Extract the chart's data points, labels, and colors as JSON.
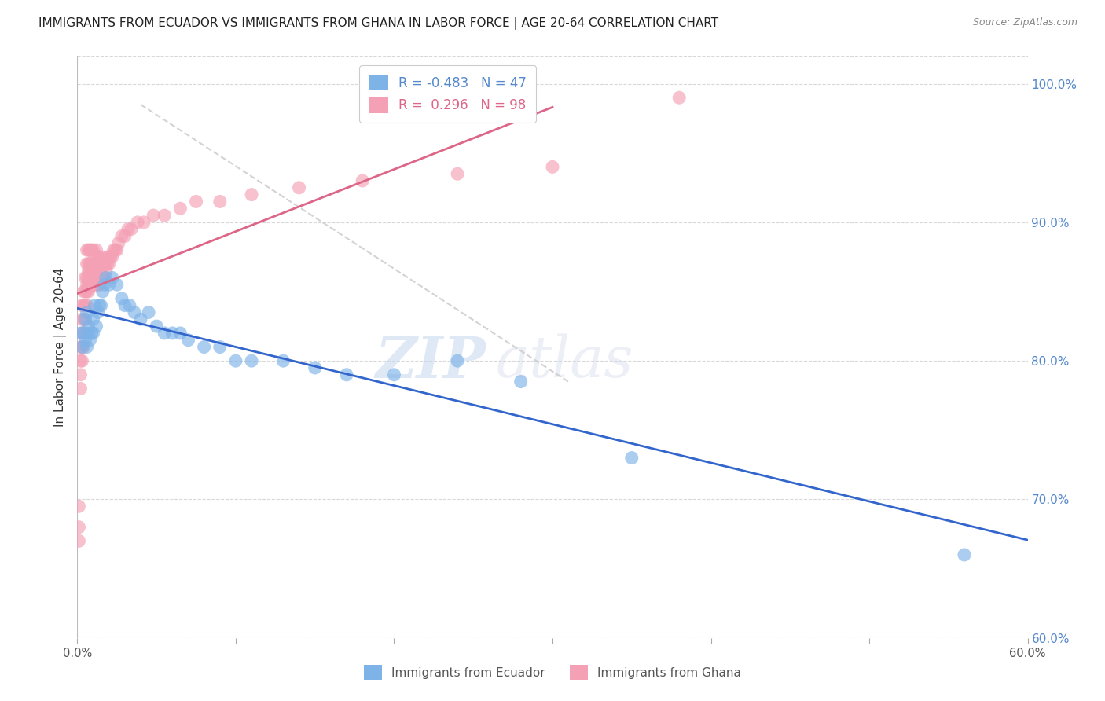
{
  "title": "IMMIGRANTS FROM ECUADOR VS IMMIGRANTS FROM GHANA IN LABOR FORCE | AGE 20-64 CORRELATION CHART",
  "source": "Source: ZipAtlas.com",
  "ylabel": "In Labor Force | Age 20-64",
  "xlim": [
    0.0,
    0.6
  ],
  "ylim": [
    0.6,
    1.02
  ],
  "xticks": [
    0.0,
    0.1,
    0.2,
    0.3,
    0.4,
    0.5,
    0.6
  ],
  "yticks_right": [
    0.6,
    0.7,
    0.8,
    0.9,
    1.0
  ],
  "ytick_labels_right": [
    "60.0%",
    "70.0%",
    "80.0%",
    "90.0%",
    "100.0%"
  ],
  "color_ecuador": "#7EB3E8",
  "color_ghana": "#F4A0B5",
  "R_ecuador": -0.483,
  "N_ecuador": 47,
  "R_ghana": 0.296,
  "N_ghana": 98,
  "ecuador_x": [
    0.002,
    0.003,
    0.004,
    0.005,
    0.005,
    0.006,
    0.006,
    0.007,
    0.007,
    0.008,
    0.009,
    0.01,
    0.01,
    0.011,
    0.012,
    0.013,
    0.014,
    0.015,
    0.016,
    0.017,
    0.018,
    0.02,
    0.022,
    0.025,
    0.028,
    0.03,
    0.033,
    0.036,
    0.04,
    0.045,
    0.05,
    0.055,
    0.06,
    0.065,
    0.07,
    0.08,
    0.09,
    0.1,
    0.11,
    0.13,
    0.15,
    0.17,
    0.2,
    0.24,
    0.28,
    0.56,
    0.35
  ],
  "ecuador_y": [
    0.82,
    0.81,
    0.82,
    0.83,
    0.815,
    0.835,
    0.81,
    0.82,
    0.825,
    0.815,
    0.82,
    0.82,
    0.83,
    0.84,
    0.825,
    0.835,
    0.84,
    0.84,
    0.85,
    0.855,
    0.86,
    0.855,
    0.86,
    0.855,
    0.845,
    0.84,
    0.84,
    0.835,
    0.83,
    0.835,
    0.825,
    0.82,
    0.82,
    0.82,
    0.815,
    0.81,
    0.81,
    0.8,
    0.8,
    0.8,
    0.795,
    0.79,
    0.79,
    0.8,
    0.785,
    0.66,
    0.73
  ],
  "ghana_x": [
    0.001,
    0.001,
    0.001,
    0.002,
    0.002,
    0.002,
    0.002,
    0.003,
    0.003,
    0.003,
    0.003,
    0.003,
    0.004,
    0.004,
    0.004,
    0.004,
    0.004,
    0.005,
    0.005,
    0.005,
    0.005,
    0.005,
    0.006,
    0.006,
    0.006,
    0.006,
    0.006,
    0.006,
    0.007,
    0.007,
    0.007,
    0.007,
    0.007,
    0.007,
    0.008,
    0.008,
    0.008,
    0.008,
    0.008,
    0.009,
    0.009,
    0.009,
    0.009,
    0.01,
    0.01,
    0.01,
    0.01,
    0.01,
    0.011,
    0.011,
    0.011,
    0.011,
    0.012,
    0.012,
    0.012,
    0.012,
    0.013,
    0.013,
    0.013,
    0.014,
    0.014,
    0.014,
    0.015,
    0.015,
    0.015,
    0.016,
    0.016,
    0.017,
    0.017,
    0.018,
    0.018,
    0.019,
    0.019,
    0.02,
    0.02,
    0.021,
    0.022,
    0.023,
    0.024,
    0.025,
    0.026,
    0.028,
    0.03,
    0.032,
    0.034,
    0.038,
    0.042,
    0.048,
    0.055,
    0.065,
    0.075,
    0.09,
    0.11,
    0.14,
    0.18,
    0.24,
    0.3,
    0.38
  ],
  "ghana_y": [
    0.67,
    0.68,
    0.695,
    0.78,
    0.79,
    0.8,
    0.81,
    0.8,
    0.81,
    0.82,
    0.83,
    0.84,
    0.81,
    0.82,
    0.83,
    0.84,
    0.85,
    0.82,
    0.83,
    0.84,
    0.85,
    0.86,
    0.84,
    0.85,
    0.855,
    0.86,
    0.87,
    0.88,
    0.85,
    0.855,
    0.86,
    0.865,
    0.87,
    0.88,
    0.855,
    0.86,
    0.865,
    0.87,
    0.88,
    0.86,
    0.865,
    0.87,
    0.88,
    0.855,
    0.86,
    0.865,
    0.87,
    0.88,
    0.855,
    0.86,
    0.87,
    0.875,
    0.855,
    0.86,
    0.87,
    0.88,
    0.855,
    0.865,
    0.875,
    0.855,
    0.86,
    0.87,
    0.86,
    0.865,
    0.875,
    0.86,
    0.87,
    0.86,
    0.87,
    0.865,
    0.87,
    0.87,
    0.875,
    0.87,
    0.875,
    0.875,
    0.875,
    0.88,
    0.88,
    0.88,
    0.885,
    0.89,
    0.89,
    0.895,
    0.895,
    0.9,
    0.9,
    0.905,
    0.905,
    0.91,
    0.915,
    0.915,
    0.92,
    0.925,
    0.93,
    0.935,
    0.94,
    0.99
  ],
  "watermark_zip": "ZIP",
  "watermark_atlas": "atlas",
  "background_color": "#ffffff",
  "grid_color": "#d8d8d8",
  "right_axis_color": "#5588CC",
  "title_fontsize": 11,
  "axis_label_fontsize": 11
}
